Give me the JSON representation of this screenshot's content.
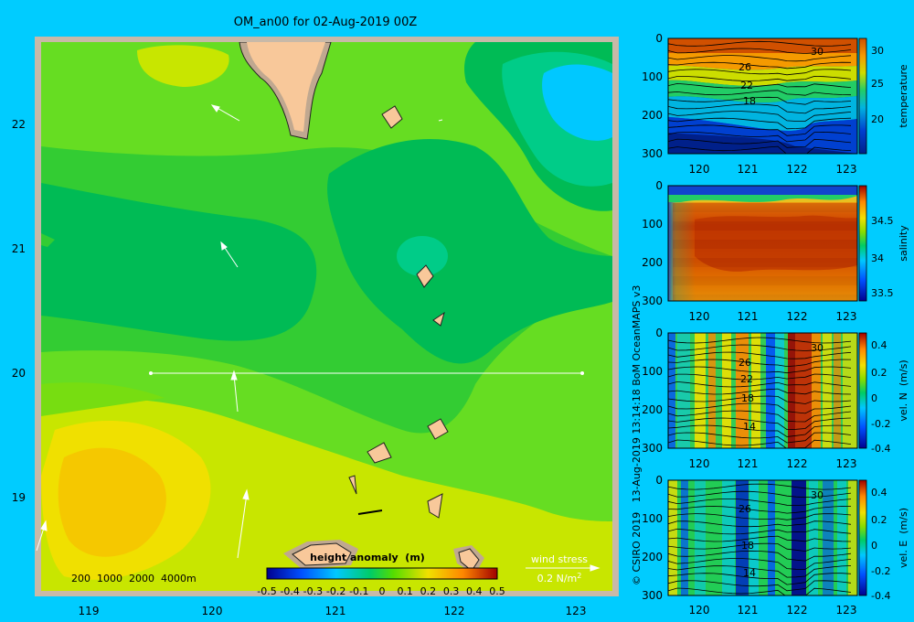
{
  "chart_data": [
    {
      "type": "heatmap",
      "title": "OM_an00 for 02-Aug-2019 00Z",
      "xlabel": "",
      "ylabel": "",
      "x_ticks": [
        "119",
        "120",
        "121",
        "122",
        "123"
      ],
      "y_ticks": [
        "22",
        "21",
        "20",
        "19"
      ],
      "xlim": [
        118.55,
        123.5
      ],
      "ylim": [
        18.3,
        22.7
      ],
      "colorbar": {
        "label": "height anomaly  (m)",
        "ticks": [
          "-0.5",
          "-0.4",
          "-0.3",
          "-0.2",
          "-0.1",
          "0",
          "0.1",
          "0.2",
          "0.3",
          "0.4",
          "0.5"
        ],
        "range": [
          -0.5,
          0.5
        ]
      },
      "field_levels": [
        {
          "level": 0.05,
          "color": "#00bb55"
        },
        {
          "level": 0.1,
          "color": "#33cc33"
        },
        {
          "level": 0.15,
          "color": "#77dd11"
        },
        {
          "level": 0.2,
          "color": "#c8e600"
        },
        {
          "level": 0.25,
          "color": "#f0e000"
        }
      ],
      "section_line": {
        "lon": [
          119.5,
          123.2
        ],
        "lat": 20.0
      },
      "depth_legend": "200  1000  2000  4000m",
      "wind_stress_legend": {
        "label": "wind stress",
        "scale": "0.2 N/m",
        "scale_sup": "2"
      }
    },
    {
      "type": "heatmap",
      "colorbar_label": "temperature",
      "x_ticks": [
        "120",
        "121",
        "122",
        "123"
      ],
      "y_ticks": [
        "0",
        "100",
        "200",
        "300"
      ],
      "colorbar_ticks": [
        "30",
        "25",
        "20"
      ],
      "colorbar_range": [
        15,
        31
      ],
      "contour_labels": [
        "30",
        "26",
        "22",
        "18"
      ]
    },
    {
      "type": "heatmap",
      "colorbar_label": "salinity",
      "x_ticks": [
        "120",
        "121",
        "122",
        "123"
      ],
      "y_ticks": [
        "0",
        "100",
        "200",
        "300"
      ],
      "colorbar_ticks": [
        "34.5",
        "34",
        "33.5"
      ],
      "colorbar_range": [
        33.4,
        34.9
      ]
    },
    {
      "type": "heatmap",
      "colorbar_label": "vel. N  (m/s)",
      "x_ticks": [
        "120",
        "121",
        "122",
        "123"
      ],
      "y_ticks": [
        "0",
        "100",
        "200",
        "300"
      ],
      "colorbar_ticks": [
        "0.4",
        "0.2",
        "0",
        "-0.2",
        "-0.4"
      ],
      "colorbar_range": [
        -0.45,
        0.45
      ],
      "contour_labels": [
        "30",
        "26",
        "22",
        "18",
        "14"
      ]
    },
    {
      "type": "heatmap",
      "colorbar_label": "vel. E  (m/s)",
      "x_ticks": [
        "120",
        "121",
        "122",
        "123"
      ],
      "y_ticks": [
        "0",
        "100",
        "200",
        "300"
      ],
      "colorbar_ticks": [
        "0.4",
        "0.2",
        "0",
        "-0.2",
        "-0.4"
      ],
      "colorbar_range": [
        -0.45,
        0.45
      ],
      "contour_labels": [
        "26",
        "18",
        "30",
        "14"
      ]
    }
  ],
  "credit": "© CSIRO 2019   13-Aug-2019 13:14:18 BoM OceanMAPS v3"
}
